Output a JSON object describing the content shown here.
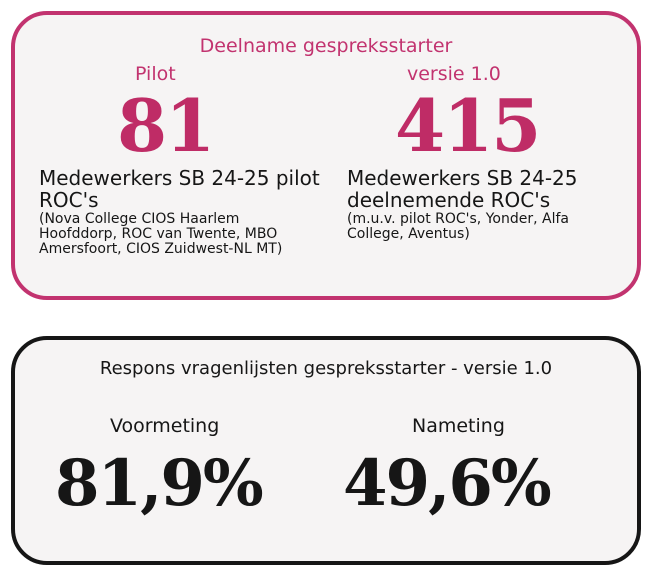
{
  "participation": {
    "title": "Deelname gespreksstarter",
    "left": {
      "label": "Pilot",
      "value": "81",
      "description": "Medewerkers SB 24-25 pilot ROC's",
      "note": "(Nova College CIOS Haarlem Hoofddorp, ROC van Twente, MBO Amersfoort, CIOS Zuidwest-NL MT)"
    },
    "right": {
      "label": "versie 1.0",
      "value": "415",
      "description": "Medewerkers SB 24-25 deelnemende ROC's",
      "note": "(m.u.v. pilot ROC's, Yonder, Alfa College, Aventus)"
    }
  },
  "response": {
    "title": "Respons vragenlijsten gespreksstarter - versie 1.0",
    "left": {
      "label": "Voormeting",
      "value": "81,9%"
    },
    "right": {
      "label": "Nameting",
      "value": "49,6%"
    }
  },
  "colors": {
    "accent": "#c2336f",
    "dark": "#161616",
    "card_bg": "#f6f4f4"
  }
}
